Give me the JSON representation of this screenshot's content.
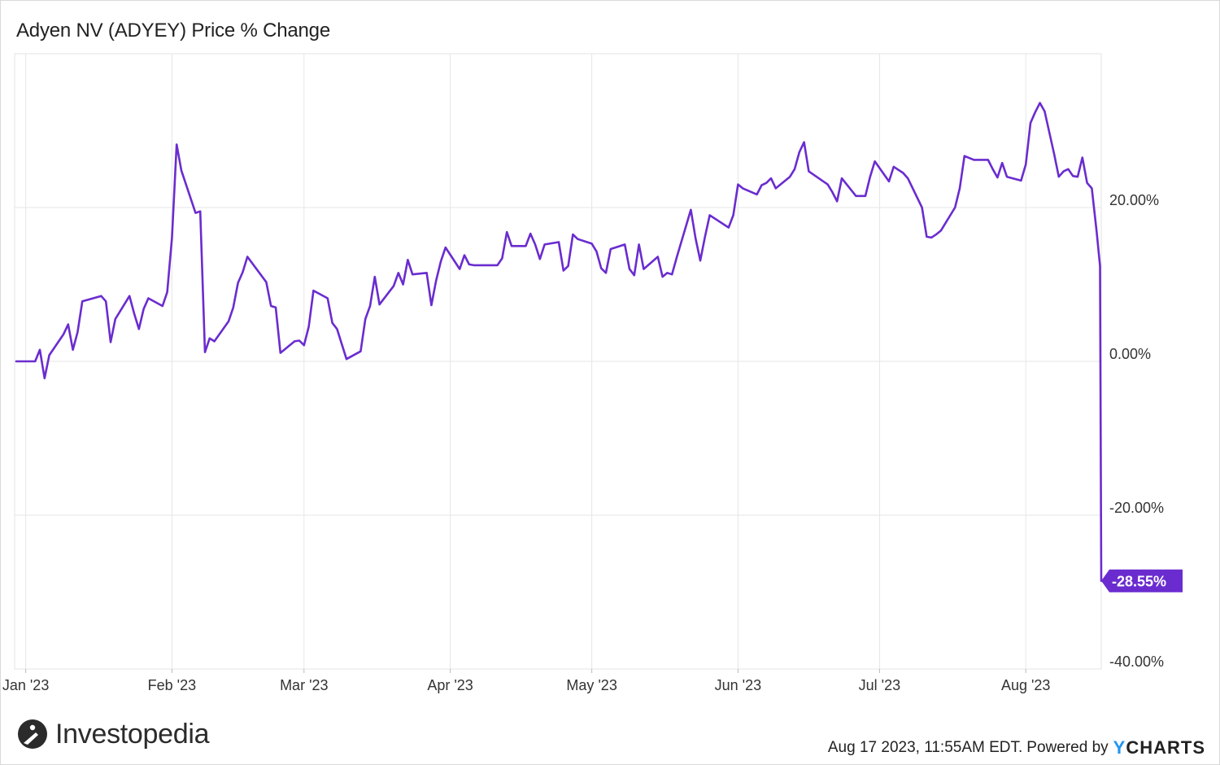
{
  "title": "Adyen NV (ADYEY) Price % Change",
  "brand": {
    "name": "Investopedia",
    "icon": "investopedia-logo-icon"
  },
  "footer": {
    "timestamp_text": "Aug 17 2023, 11:55AM EDT.",
    "powered_by": "Powered by",
    "ycharts_y": "Y",
    "ycharts_rest": "CHARTS"
  },
  "colors": {
    "line": "#6a2ccf",
    "grid": "#e6e6e6",
    "label_bg": "#6a2ccf"
  },
  "chart_data": {
    "type": "line",
    "title": "Adyen NV (ADYEY) Price % Change",
    "x_start": "2022-12-30",
    "x_end": "2023-08-17",
    "ylim": [
      -40,
      40
    ],
    "y_ticks": [
      {
        "value": 20,
        "label": "20.00%"
      },
      {
        "value": 0,
        "label": "0.00%"
      },
      {
        "value": -20,
        "label": "-20.00%"
      },
      {
        "value": -40,
        "label": "-40.00%"
      }
    ],
    "x_ticks": [
      {
        "date": "2023-01-01",
        "label": "Jan '23"
      },
      {
        "date": "2023-02-01",
        "label": "Feb '23"
      },
      {
        "date": "2023-03-01",
        "label": "Mar '23"
      },
      {
        "date": "2023-04-01",
        "label": "Apr '23"
      },
      {
        "date": "2023-05-01",
        "label": "May '23"
      },
      {
        "date": "2023-06-01",
        "label": "Jun '23"
      },
      {
        "date": "2023-07-01",
        "label": "Jul '23"
      },
      {
        "date": "2023-08-01",
        "label": "Aug '23"
      }
    ],
    "grid": true,
    "end_label": "-28.55%",
    "series": [
      {
        "values": [
          [
            "2022-12-30",
            0.0
          ],
          [
            "2023-01-03",
            0.0
          ],
          [
            "2023-01-04",
            1.5
          ],
          [
            "2023-01-05",
            -2.2
          ],
          [
            "2023-01-06",
            0.8
          ],
          [
            "2023-01-09",
            3.5
          ],
          [
            "2023-01-10",
            4.8
          ],
          [
            "2023-01-11",
            1.5
          ],
          [
            "2023-01-12",
            3.8
          ],
          [
            "2023-01-13",
            7.8
          ],
          [
            "2023-01-17",
            8.5
          ],
          [
            "2023-01-18",
            7.8
          ],
          [
            "2023-01-19",
            2.5
          ],
          [
            "2023-01-20",
            5.5
          ],
          [
            "2023-01-23",
            8.5
          ],
          [
            "2023-01-24",
            6.2
          ],
          [
            "2023-01-25",
            4.2
          ],
          [
            "2023-01-26",
            6.8
          ],
          [
            "2023-01-27",
            8.2
          ],
          [
            "2023-01-30",
            7.2
          ],
          [
            "2023-01-31",
            9.0
          ],
          [
            "2023-02-01",
            16.0
          ],
          [
            "2023-02-02",
            28.2
          ],
          [
            "2023-02-03",
            24.8
          ],
          [
            "2023-02-06",
            19.3
          ],
          [
            "2023-02-07",
            19.5
          ],
          [
            "2023-02-08",
            1.2
          ],
          [
            "2023-02-09",
            3.0
          ],
          [
            "2023-02-10",
            2.6
          ],
          [
            "2023-02-13",
            5.2
          ],
          [
            "2023-02-14",
            7.0
          ],
          [
            "2023-02-15",
            10.2
          ],
          [
            "2023-02-16",
            11.6
          ],
          [
            "2023-02-17",
            13.6
          ],
          [
            "2023-02-21",
            10.3
          ],
          [
            "2023-02-22",
            7.2
          ],
          [
            "2023-02-23",
            7.0
          ],
          [
            "2023-02-24",
            1.1
          ],
          [
            "2023-02-27",
            2.6
          ],
          [
            "2023-02-28",
            2.7
          ],
          [
            "2023-03-01",
            2.1
          ],
          [
            "2023-03-02",
            4.5
          ],
          [
            "2023-03-03",
            9.2
          ],
          [
            "2023-03-06",
            8.2
          ],
          [
            "2023-03-07",
            5.0
          ],
          [
            "2023-03-08",
            4.2
          ],
          [
            "2023-03-10",
            0.3
          ],
          [
            "2023-03-13",
            1.3
          ],
          [
            "2023-03-14",
            5.5
          ],
          [
            "2023-03-15",
            7.2
          ],
          [
            "2023-03-16",
            11.0
          ],
          [
            "2023-03-17",
            7.4
          ],
          [
            "2023-03-20",
            9.8
          ],
          [
            "2023-03-21",
            11.5
          ],
          [
            "2023-03-22",
            10.0
          ],
          [
            "2023-03-23",
            13.2
          ],
          [
            "2023-03-24",
            11.3
          ],
          [
            "2023-03-27",
            11.5
          ],
          [
            "2023-03-28",
            7.3
          ],
          [
            "2023-03-29",
            10.5
          ],
          [
            "2023-03-30",
            13.0
          ],
          [
            "2023-03-31",
            14.8
          ],
          [
            "2023-04-03",
            12.0
          ],
          [
            "2023-04-04",
            13.8
          ],
          [
            "2023-04-05",
            12.6
          ],
          [
            "2023-04-06",
            12.5
          ],
          [
            "2023-04-11",
            12.5
          ],
          [
            "2023-04-12",
            13.4
          ],
          [
            "2023-04-13",
            16.8
          ],
          [
            "2023-04-14",
            15.0
          ],
          [
            "2023-04-17",
            15.0
          ],
          [
            "2023-04-18",
            16.6
          ],
          [
            "2023-04-19",
            15.2
          ],
          [
            "2023-04-20",
            13.3
          ],
          [
            "2023-04-21",
            15.2
          ],
          [
            "2023-04-24",
            15.5
          ],
          [
            "2023-04-25",
            11.8
          ],
          [
            "2023-04-26",
            12.4
          ],
          [
            "2023-04-27",
            16.5
          ],
          [
            "2023-04-28",
            15.9
          ],
          [
            "2023-05-01",
            15.3
          ],
          [
            "2023-05-02",
            14.3
          ],
          [
            "2023-05-03",
            12.1
          ],
          [
            "2023-05-04",
            11.5
          ],
          [
            "2023-05-05",
            14.6
          ],
          [
            "2023-05-08",
            15.2
          ],
          [
            "2023-05-09",
            12.0
          ],
          [
            "2023-05-10",
            11.2
          ],
          [
            "2023-05-11",
            15.2
          ],
          [
            "2023-05-12",
            12.0
          ],
          [
            "2023-05-15",
            13.6
          ],
          [
            "2023-05-16",
            11.0
          ],
          [
            "2023-05-17",
            11.5
          ],
          [
            "2023-05-18",
            11.3
          ],
          [
            "2023-05-19",
            13.5
          ],
          [
            "2023-05-22",
            19.7
          ],
          [
            "2023-05-23",
            16.0
          ],
          [
            "2023-05-24",
            13.1
          ],
          [
            "2023-05-25",
            16.2
          ],
          [
            "2023-05-26",
            19.0
          ],
          [
            "2023-05-30",
            17.4
          ],
          [
            "2023-05-31",
            19.0
          ],
          [
            "2023-06-01",
            23.0
          ],
          [
            "2023-06-02",
            22.5
          ],
          [
            "2023-06-05",
            21.7
          ],
          [
            "2023-06-06",
            22.9
          ],
          [
            "2023-06-07",
            23.2
          ],
          [
            "2023-06-08",
            23.8
          ],
          [
            "2023-06-09",
            22.5
          ],
          [
            "2023-06-12",
            24.0
          ],
          [
            "2023-06-13",
            25.0
          ],
          [
            "2023-06-14",
            27.2
          ],
          [
            "2023-06-15",
            28.5
          ],
          [
            "2023-06-16",
            24.7
          ],
          [
            "2023-06-20",
            23.0
          ],
          [
            "2023-06-21",
            22.0
          ],
          [
            "2023-06-22",
            20.8
          ],
          [
            "2023-06-23",
            23.8
          ],
          [
            "2023-06-26",
            21.5
          ],
          [
            "2023-06-27",
            21.5
          ],
          [
            "2023-06-28",
            21.5
          ],
          [
            "2023-06-29",
            24.0
          ],
          [
            "2023-06-30",
            26.0
          ],
          [
            "2023-07-03",
            23.4
          ],
          [
            "2023-07-04",
            25.3
          ],
          [
            "2023-07-06",
            24.5
          ],
          [
            "2023-07-07",
            23.8
          ],
          [
            "2023-07-10",
            20.0
          ],
          [
            "2023-07-11",
            16.2
          ],
          [
            "2023-07-12",
            16.1
          ],
          [
            "2023-07-13",
            16.5
          ],
          [
            "2023-07-14",
            17.0
          ],
          [
            "2023-07-17",
            20.0
          ],
          [
            "2023-07-18",
            22.5
          ],
          [
            "2023-07-19",
            26.7
          ],
          [
            "2023-07-21",
            26.2
          ],
          [
            "2023-07-24",
            26.2
          ],
          [
            "2023-07-25",
            25.0
          ],
          [
            "2023-07-26",
            23.9
          ],
          [
            "2023-07-27",
            25.8
          ],
          [
            "2023-07-28",
            24.0
          ],
          [
            "2023-07-31",
            23.5
          ],
          [
            "2023-08-01",
            25.6
          ],
          [
            "2023-08-02",
            31.0
          ],
          [
            "2023-08-03",
            32.4
          ],
          [
            "2023-08-04",
            33.6
          ],
          [
            "2023-08-05",
            32.5
          ],
          [
            "2023-08-07",
            27.0
          ],
          [
            "2023-08-08",
            24.0
          ],
          [
            "2023-08-09",
            24.7
          ],
          [
            "2023-08-10",
            25.0
          ],
          [
            "2023-08-11",
            24.1
          ],
          [
            "2023-08-12",
            24.0
          ],
          [
            "2023-08-13",
            26.5
          ],
          [
            "2023-08-14",
            23.2
          ],
          [
            "2023-08-15",
            22.5
          ],
          [
            "2023-08-16",
            17.0
          ],
          [
            "2023-08-16T18:00",
            12.4
          ],
          [
            "2023-08-17",
            -28.55
          ]
        ]
      }
    ]
  }
}
